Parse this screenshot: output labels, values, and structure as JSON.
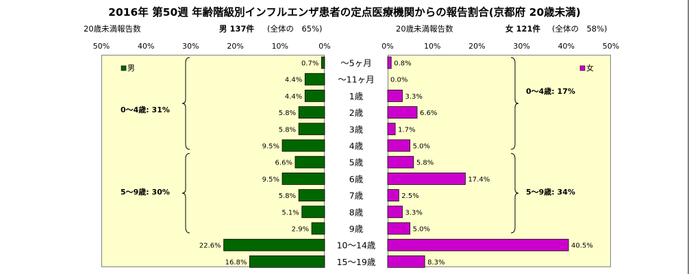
{
  "title": "2016年 第50週 年齢階級別インフルエンザ患者の定点医療機関からの報告割合(京都府 20歳未満)",
  "header": {
    "left_label": "20歳未満報告数",
    "male_summary": "男 137件",
    "male_share": "(全体の　65%)",
    "right_label": "20歳未満報告数",
    "female_summary": "女 121件",
    "female_share": "(全体の　58%)"
  },
  "annotations": {
    "male_0_4": "0～4歳: 31%",
    "male_5_9": "5～9歳: 30%",
    "female_0_4": "0～4歳: 17%",
    "female_5_9": "5～9歳: 34%"
  },
  "chart_data": {
    "type": "bar",
    "orientation": "horizontal-butterfly",
    "title": "2016年 第50週 年齢階級別インフルエンザ患者の定点医療機関からの報告割合(京都府 20歳未満)",
    "categories": [
      "～5ヶ月",
      "～11ヶ月",
      "1歳",
      "2歳",
      "3歳",
      "4歳",
      "5歳",
      "6歳",
      "7歳",
      "8歳",
      "9歳",
      "10～14歳",
      "15～19歳"
    ],
    "series": [
      {
        "name": "男",
        "color": "#006600",
        "values": [
          0.7,
          4.4,
          4.4,
          5.8,
          5.8,
          9.5,
          6.6,
          9.5,
          5.8,
          5.1,
          2.9,
          22.6,
          16.8
        ],
        "labels": [
          "0.7%",
          "4.4%",
          "4.4%",
          "5.8%",
          "5.8%",
          "9.5%",
          "6.6%",
          "9.5%",
          "5.8%",
          "5.1%",
          "2.9%",
          "22.6%",
          "16.8%"
        ]
      },
      {
        "name": "女",
        "color": "#cc00cc",
        "values": [
          0.8,
          0.0,
          3.3,
          6.6,
          1.7,
          5.0,
          5.8,
          17.4,
          2.5,
          3.3,
          5.0,
          40.5,
          8.3
        ],
        "labels": [
          "0.8%",
          "0.0%",
          "3.3%",
          "6.6%",
          "1.7%",
          "5.0%",
          "5.8%",
          "17.4%",
          "2.5%",
          "3.3%",
          "5.0%",
          "40.5%",
          "8.3%"
        ]
      }
    ],
    "xlim": [
      0,
      50
    ],
    "ticks_left": [
      "50%",
      "40%",
      "30%",
      "20%",
      "10%",
      "0%"
    ],
    "ticks_right": [
      "0%",
      "10%",
      "20%",
      "30%",
      "40%",
      "50%"
    ],
    "legend": "top-left / top-right inside plots",
    "background": "#ffffcc",
    "grid": false
  }
}
